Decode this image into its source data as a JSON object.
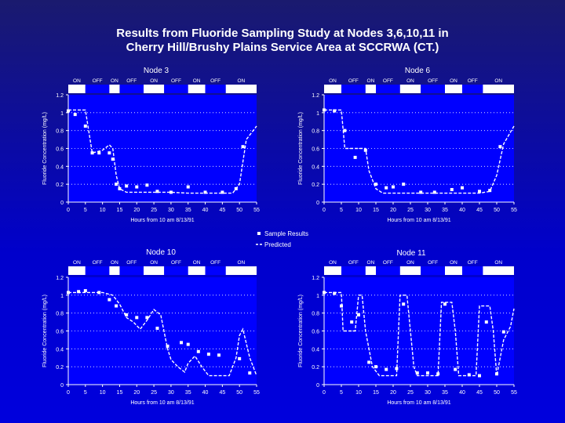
{
  "title": {
    "line1": "Results from Fluoride Sampling Study at Nodes 3,6,10,11 in",
    "line2": "Cherry Hill/Brushy Plains Service Area at SCCRWA (CT.)"
  },
  "legend": {
    "samples": "Sample Results",
    "predicted": "Predicted"
  },
  "colors": {
    "plot_bg": "#0000ff",
    "page_bg": "#0000cc",
    "ink": "#ffffff"
  },
  "chart_data": [
    {
      "type": "line",
      "title": "Node 3",
      "xlabel": "Hours from 10 am 8/13/91",
      "ylabel": "Fluoride Concentration (mg/L)",
      "xlim": [
        0,
        55
      ],
      "ylim": [
        0,
        1.2
      ],
      "xticks": [
        0,
        5,
        10,
        15,
        20,
        25,
        30,
        35,
        40,
        45,
        50,
        55
      ],
      "xtick_labels": [
        "0",
        "5",
        "10",
        "15",
        "20",
        "25",
        "30",
        "35",
        "40",
        "45",
        "50",
        "55"
      ],
      "yticks": [
        0,
        0.2,
        0.4,
        0.6,
        0.8,
        1,
        1.2
      ],
      "ytick_labels": [
        "0",
        "0.2",
        "0.4",
        "0.6",
        "0.8",
        "1",
        "1.2"
      ],
      "onoff": [
        {
          "label": "ON",
          "start": 0,
          "end": 5
        },
        {
          "label": "OFF",
          "start": 5,
          "end": 12
        },
        {
          "label": "ON",
          "start": 12,
          "end": 15
        },
        {
          "label": "OFF",
          "start": 15,
          "end": 22
        },
        {
          "label": "ON",
          "start": 22,
          "end": 28
        },
        {
          "label": "OFF",
          "start": 28,
          "end": 35
        },
        {
          "label": "ON",
          "start": 35,
          "end": 40
        },
        {
          "label": "OFF",
          "start": 40,
          "end": 46
        },
        {
          "label": "ON",
          "start": 46,
          "end": 55
        }
      ],
      "series": [
        {
          "name": "Sample Results",
          "type": "scatter",
          "x": [
            0,
            2,
            5,
            7,
            9,
            12,
            13,
            14,
            15,
            17,
            20,
            23,
            26,
            30,
            35,
            40,
            45,
            49,
            51
          ],
          "y": [
            1.02,
            0.98,
            0.85,
            0.55,
            0.55,
            0.55,
            0.48,
            0.2,
            0.15,
            0.18,
            0.17,
            0.19,
            0.12,
            0.11,
            0.17,
            0.11,
            0.11,
            0.15,
            0.62
          ]
        },
        {
          "name": "Predicted",
          "type": "line",
          "x": [
            0,
            5,
            7,
            10,
            12,
            13,
            14,
            15,
            17,
            25,
            30,
            35,
            40,
            45,
            48,
            50,
            52,
            55
          ],
          "y": [
            1.03,
            1.03,
            0.55,
            0.58,
            0.64,
            0.6,
            0.3,
            0.15,
            0.11,
            0.11,
            0.11,
            0.1,
            0.1,
            0.1,
            0.1,
            0.2,
            0.7,
            0.85
          ]
        }
      ]
    },
    {
      "type": "line",
      "title": "Node 6",
      "xlabel": "Hours from 10 am 8/13/91",
      "ylabel": "Fluoride Concentration (mg/L)",
      "xlim": [
        0,
        55
      ],
      "ylim": [
        0,
        1.2
      ],
      "xticks": [
        0,
        5,
        10,
        15,
        20,
        25,
        30,
        35,
        40,
        45,
        50,
        55
      ],
      "xtick_labels": [
        "0",
        "5",
        "10",
        "15",
        "20",
        "25",
        "30",
        "35",
        "40",
        "45",
        "50",
        "55"
      ],
      "yticks": [
        0,
        0.2,
        0.4,
        0.6,
        0.8,
        1,
        1.2
      ],
      "ytick_labels": [
        "0",
        "0.2",
        "0.4",
        "0.6",
        "0.8",
        "1",
        "1.2"
      ],
      "onoff": [
        {
          "label": "ON",
          "start": 0,
          "end": 5
        },
        {
          "label": "OFF",
          "start": 5,
          "end": 12
        },
        {
          "label": "ON",
          "start": 12,
          "end": 15
        },
        {
          "label": "OFF",
          "start": 15,
          "end": 22
        },
        {
          "label": "ON",
          "start": 22,
          "end": 28
        },
        {
          "label": "OFF",
          "start": 28,
          "end": 35
        },
        {
          "label": "ON",
          "start": 35,
          "end": 40
        },
        {
          "label": "OFF",
          "start": 40,
          "end": 46
        },
        {
          "label": "ON",
          "start": 46,
          "end": 55
        }
      ],
      "series": [
        {
          "name": "Sample Results",
          "type": "scatter",
          "x": [
            0,
            3,
            6,
            9,
            12,
            15,
            18,
            20,
            23,
            28,
            32,
            37,
            40,
            45,
            48,
            51
          ],
          "y": [
            1.03,
            1.02,
            0.8,
            0.5,
            0.58,
            0.2,
            0.16,
            0.17,
            0.2,
            0.11,
            0.11,
            0.14,
            0.16,
            0.12,
            0.13,
            0.62
          ]
        },
        {
          "name": "Predicted",
          "type": "line",
          "x": [
            0,
            5,
            6,
            12,
            13,
            15,
            17,
            25,
            30,
            35,
            40,
            45,
            48,
            50,
            52,
            55
          ],
          "y": [
            1.03,
            1.03,
            0.6,
            0.6,
            0.35,
            0.15,
            0.1,
            0.1,
            0.1,
            0.1,
            0.1,
            0.1,
            0.12,
            0.3,
            0.65,
            0.85
          ]
        }
      ]
    },
    {
      "type": "line",
      "title": "Node 10",
      "xlabel": "Hours from 10 am 8/13/91",
      "ylabel": "Fluoride Concentration (mg/L)",
      "xlim": [
        0,
        55
      ],
      "ylim": [
        0,
        1.2
      ],
      "xticks": [
        0,
        5,
        10,
        15,
        20,
        25,
        30,
        35,
        40,
        45,
        50,
        55
      ],
      "xtick_labels": [
        "0",
        "5",
        "10",
        "15",
        "20",
        "25",
        "30",
        "35",
        "40",
        "45",
        "50",
        "55"
      ],
      "yticks": [
        0,
        0.2,
        0.4,
        0.6,
        0.8,
        1,
        1.2
      ],
      "ytick_labels": [
        "0",
        "0.2",
        "0.4",
        "0.6",
        "0.8",
        "1",
        "1.2"
      ],
      "onoff": [
        {
          "label": "ON",
          "start": 0,
          "end": 5
        },
        {
          "label": "OFF",
          "start": 5,
          "end": 12
        },
        {
          "label": "ON",
          "start": 12,
          "end": 15
        },
        {
          "label": "OFF",
          "start": 15,
          "end": 22
        },
        {
          "label": "ON",
          "start": 22,
          "end": 28
        },
        {
          "label": "OFF",
          "start": 28,
          "end": 35
        },
        {
          "label": "ON",
          "start": 35,
          "end": 40
        },
        {
          "label": "OFF",
          "start": 40,
          "end": 46
        },
        {
          "label": "ON",
          "start": 46,
          "end": 55
        }
      ],
      "series": [
        {
          "name": "Sample Results",
          "type": "scatter",
          "x": [
            0,
            3,
            5,
            9,
            12,
            14,
            17,
            20,
            23,
            26,
            29,
            33,
            35,
            38,
            41,
            44,
            50,
            53
          ],
          "y": [
            1.03,
            1.04,
            1.05,
            1.03,
            0.95,
            0.88,
            0.78,
            0.75,
            0.75,
            0.63,
            0.43,
            0.47,
            0.45,
            0.37,
            0.34,
            0.33,
            0.29,
            0.13
          ]
        },
        {
          "name": "Predicted",
          "type": "line",
          "x": [
            0,
            10,
            13,
            15,
            17,
            19,
            21,
            23,
            25,
            27,
            29,
            30,
            32,
            34,
            35,
            37,
            39,
            41,
            45,
            47,
            49,
            50,
            51,
            53,
            55
          ],
          "y": [
            1.03,
            1.03,
            1.0,
            0.9,
            0.75,
            0.7,
            0.62,
            0.72,
            0.84,
            0.78,
            0.4,
            0.28,
            0.2,
            0.14,
            0.24,
            0.32,
            0.2,
            0.1,
            0.1,
            0.1,
            0.3,
            0.55,
            0.62,
            0.3,
            0.1
          ]
        }
      ]
    },
    {
      "type": "line",
      "title": "Node 11",
      "xlabel": "Hours from 10 am 8/13/91",
      "ylabel": "Fluoride Concentration (mg/L)",
      "xlim": [
        0,
        55
      ],
      "ylim": [
        0,
        1.2
      ],
      "xticks": [
        0,
        5,
        10,
        15,
        20,
        25,
        30,
        35,
        40,
        45,
        50,
        55
      ],
      "xtick_labels": [
        "0",
        "5",
        "10",
        "15",
        "20",
        "25",
        "30",
        "35",
        "40",
        "45",
        "50",
        "55"
      ],
      "yticks": [
        0,
        0.2,
        0.4,
        0.6,
        0.8,
        1,
        1.2
      ],
      "ytick_labels": [
        "0",
        "0.2",
        "0.4",
        "0.6",
        "0.8",
        "1",
        "1.2"
      ],
      "onoff": [
        {
          "label": "ON",
          "start": 0,
          "end": 5
        },
        {
          "label": "OFF",
          "start": 5,
          "end": 12
        },
        {
          "label": "ON",
          "start": 12,
          "end": 15
        },
        {
          "label": "OFF",
          "start": 15,
          "end": 22
        },
        {
          "label": "ON",
          "start": 22,
          "end": 28
        },
        {
          "label": "OFF",
          "start": 28,
          "end": 35
        },
        {
          "label": "ON",
          "start": 35,
          "end": 40
        },
        {
          "label": "OFF",
          "start": 40,
          "end": 46
        },
        {
          "label": "ON",
          "start": 46,
          "end": 55
        }
      ],
      "series": [
        {
          "name": "Sample Results",
          "type": "scatter",
          "x": [
            0,
            3,
            5,
            8,
            10,
            13,
            15,
            18,
            21,
            23,
            27,
            30,
            33,
            35,
            38,
            42,
            45,
            47,
            50,
            52
          ],
          "y": [
            1.03,
            1.02,
            0.88,
            0.7,
            0.78,
            0.25,
            0.2,
            0.17,
            0.18,
            0.9,
            0.13,
            0.13,
            0.12,
            0.9,
            0.17,
            0.11,
            0.1,
            0.7,
            0.12,
            0.59
          ]
        },
        {
          "name": "Predicted",
          "type": "line",
          "x": [
            0,
            5,
            5.5,
            9,
            10,
            11,
            12,
            14,
            16,
            21,
            22,
            24,
            25,
            26,
            27,
            33,
            34,
            37,
            38,
            39,
            44,
            45,
            48,
            49,
            50,
            52,
            54,
            55
          ],
          "y": [
            1.03,
            1.03,
            0.6,
            0.6,
            1.0,
            1.0,
            0.6,
            0.2,
            0.1,
            0.1,
            1.0,
            1.0,
            0.6,
            0.2,
            0.1,
            0.1,
            0.92,
            0.92,
            0.6,
            0.1,
            0.1,
            0.88,
            0.88,
            0.6,
            0.1,
            0.5,
            0.65,
            0.85
          ]
        }
      ]
    }
  ]
}
